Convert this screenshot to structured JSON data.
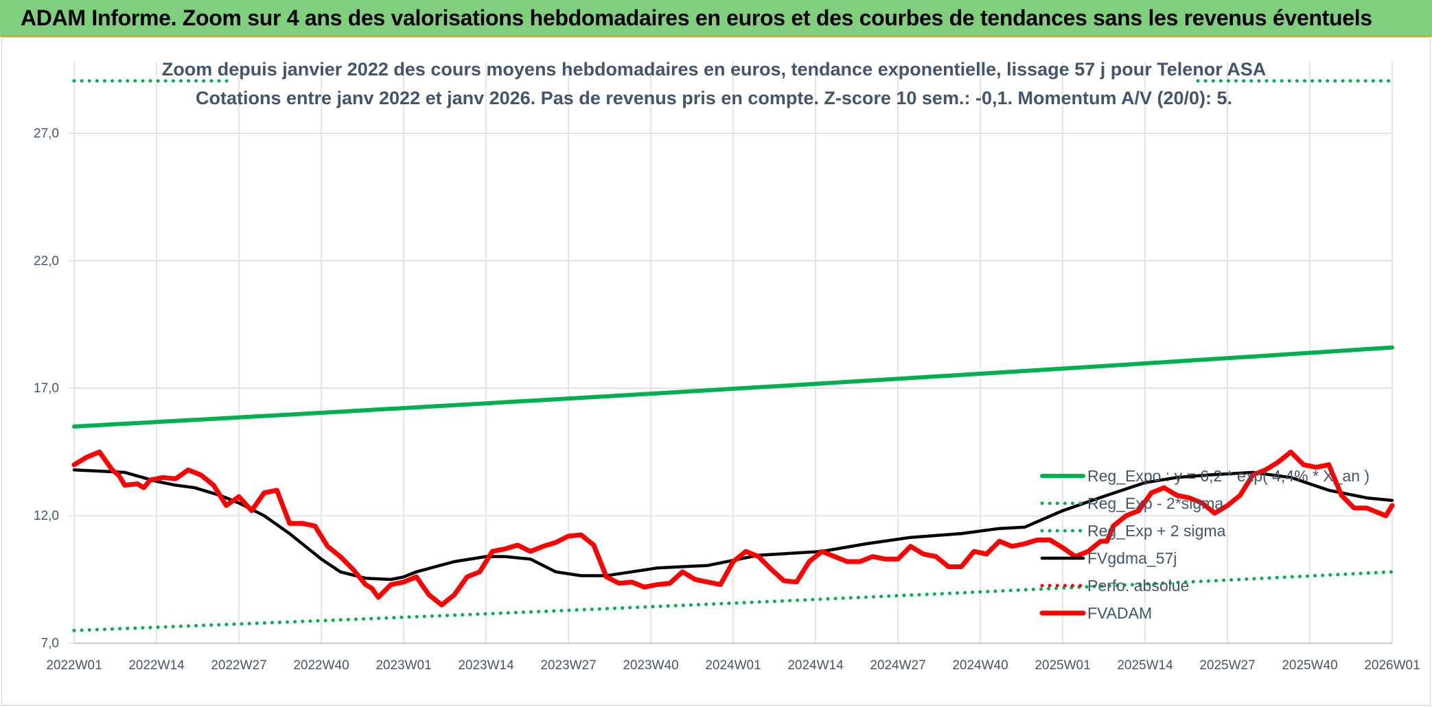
{
  "banner": {
    "title": "ADAM Informe. Zoom sur 4 ans des valorisations hebdomadaires en euros et des courbes de tendances sans les revenus éventuels"
  },
  "colors": {
    "banner_bg": "#7fcf7f",
    "reg_expo": "#00b050",
    "fvgdma": "#000000",
    "fvadam": "#ff0000",
    "perfo": "#ff0000",
    "text": "#44546a"
  },
  "chart_data": {
    "type": "line",
    "title_line1": "Zoom depuis janvier 2022 des cours moyens hebdomadaires en euros, tendance exponentielle, lissage 57 j pour Telenor ASA",
    "title_line2": "Cotations entre janv 2022 et janv 2026. Pas de revenus pris en compte. Z-score 10 sem.: -0,1. Momentum A/V (20/0): 5.",
    "x_tick_labels": [
      "2022W01",
      "2022W14",
      "2022W27",
      "2022W40",
      "2023W01",
      "2023W14",
      "2023W27",
      "2023W40",
      "2024W01",
      "2024W14",
      "2024W27",
      "2024W40",
      "2025W01",
      "2025W14",
      "2025W27",
      "2025W40",
      "2026W01"
    ],
    "y_tick_labels": [
      "7,0",
      "12,0",
      "17,0",
      "22,0",
      "27,0"
    ],
    "ylim": [
      7.0,
      29.0
    ],
    "n_weeks": 209,
    "grid": true,
    "legend_position": "bottom-right",
    "series": [
      {
        "name": "Reg_Expo : y = 6,2 * exp( 4,4% * X_an )",
        "style": "solid-thick",
        "color": "#00b050",
        "x": [
          0,
          208
        ],
        "values": [
          15.5,
          18.6
        ]
      },
      {
        "name": "Reg_Exp - 2*sigma",
        "style": "dotted",
        "color": "#00b050",
        "x": [
          0,
          208
        ],
        "values": [
          7.5,
          9.8
        ]
      },
      {
        "name": "Reg_Exp + 2 sigma",
        "style": "dotted",
        "color": "#00b050",
        "x": [
          0,
          208
        ],
        "values": [
          30.0,
          30.0
        ]
      },
      {
        "name": "FVgdma_57j",
        "style": "solid",
        "color": "#000000",
        "x": [
          0,
          8,
          13,
          16,
          19,
          23,
          26,
          30,
          34,
          39,
          42,
          46,
          50,
          52,
          54,
          60,
          65,
          68,
          72,
          76,
          80,
          84,
          92,
          100,
          108,
          118,
          125,
          132,
          140,
          146,
          150,
          156,
          163,
          169,
          174,
          179,
          186,
          192,
          198,
          204,
          208
        ],
        "values": [
          13.8,
          13.7,
          13.35,
          13.2,
          13.1,
          12.8,
          12.5,
          12.0,
          11.3,
          10.3,
          9.8,
          9.55,
          9.5,
          9.6,
          9.8,
          10.2,
          10.4,
          10.4,
          10.3,
          9.8,
          9.65,
          9.65,
          9.95,
          10.05,
          10.45,
          10.6,
          10.9,
          11.15,
          11.3,
          11.5,
          11.55,
          12.2,
          12.8,
          13.3,
          13.5,
          13.6,
          13.7,
          13.5,
          13.0,
          12.7,
          12.6
        ]
      },
      {
        "name": "Perfo. absolue",
        "style": "dotted",
        "color": "#ff0000",
        "x": [],
        "values": []
      },
      {
        "name": "FVADAM",
        "style": "solid-thick",
        "color": "#ff0000",
        "x": [
          0,
          2,
          4,
          6,
          7,
          8,
          10,
          11,
          12,
          14,
          16,
          18,
          20,
          22,
          24,
          26,
          28,
          30,
          32,
          34,
          36,
          38,
          40,
          42,
          44,
          46,
          47,
          48,
          50,
          52,
          54,
          56,
          58,
          60,
          62,
          64,
          66,
          68,
          70,
          72,
          74,
          76,
          78,
          80,
          82,
          84,
          86,
          88,
          90,
          92,
          94,
          96,
          98,
          100,
          102,
          104,
          106,
          108,
          110,
          112,
          114,
          116,
          118,
          120,
          122,
          124,
          126,
          128,
          130,
          132,
          134,
          136,
          138,
          140,
          142,
          144,
          146,
          148,
          150,
          152,
          154,
          156,
          158,
          160,
          162,
          163,
          164,
          166,
          168,
          170,
          172,
          174,
          176,
          178,
          180,
          182,
          184,
          186,
          188,
          190,
          192,
          194,
          196,
          198,
          200,
          202,
          204,
          206,
          207,
          208
        ],
        "values": [
          14.0,
          14.3,
          14.5,
          13.8,
          13.6,
          13.2,
          13.25,
          13.1,
          13.4,
          13.5,
          13.45,
          13.8,
          13.6,
          13.2,
          12.4,
          12.75,
          12.2,
          12.9,
          13.0,
          11.7,
          11.7,
          11.6,
          10.8,
          10.4,
          9.9,
          9.3,
          9.15,
          8.8,
          9.3,
          9.4,
          9.6,
          8.9,
          8.5,
          8.9,
          9.6,
          9.8,
          10.6,
          10.7,
          10.85,
          10.6,
          10.8,
          10.95,
          11.2,
          11.25,
          10.85,
          9.6,
          9.35,
          9.4,
          9.2,
          9.3,
          9.35,
          9.8,
          9.5,
          9.4,
          9.3,
          10.2,
          10.6,
          10.4,
          9.9,
          9.45,
          9.4,
          10.2,
          10.6,
          10.4,
          10.2,
          10.2,
          10.4,
          10.3,
          10.3,
          10.8,
          10.5,
          10.4,
          10.0,
          10.0,
          10.6,
          10.5,
          11.0,
          10.8,
          10.9,
          11.05,
          11.05,
          10.75,
          10.4,
          10.6,
          11.0,
          11.0,
          11.6,
          12.0,
          12.2,
          12.9,
          13.1,
          12.8,
          12.7,
          12.5,
          12.1,
          12.4,
          12.8,
          13.6,
          13.8,
          14.1,
          14.5,
          14.0,
          13.9,
          14.0,
          12.8,
          12.3,
          12.3,
          12.1,
          12.0,
          12.4
        ]
      }
    ]
  }
}
